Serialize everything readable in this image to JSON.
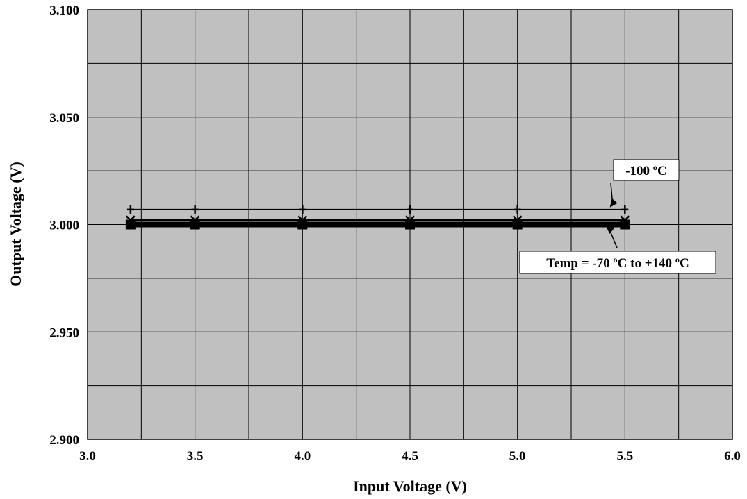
{
  "chart_data": {
    "type": "line",
    "xlabel": "Input Voltage (V)",
    "ylabel": "Output Voltage (V)",
    "xlim": [
      3.0,
      6.0
    ],
    "ylim": [
      2.9,
      3.1
    ],
    "x_ticks": [
      "3.0",
      "3.5",
      "4.0",
      "4.5",
      "5.0",
      "5.5",
      "6.0"
    ],
    "y_ticks": [
      "2.900",
      "2.950",
      "3.000",
      "3.050",
      "3.100"
    ],
    "grid": true,
    "background_color": "#c0c0c0",
    "series": [
      {
        "marker": "plus",
        "x": [
          3.2,
          3.5,
          4.0,
          4.5,
          5.0,
          5.5
        ],
        "y": [
          3.007,
          3.007,
          3.007,
          3.007,
          3.007,
          3.007
        ]
      },
      {
        "marker": "x",
        "x": [
          3.2,
          3.5,
          4.0,
          4.5,
          5.0,
          5.5
        ],
        "y": [
          3.002,
          3.002,
          3.002,
          3.002,
          3.002,
          3.002
        ]
      },
      {
        "marker": "square",
        "x": [
          3.2,
          3.5,
          4.0,
          4.5,
          5.0,
          5.5
        ],
        "y": [
          3.0,
          3.0,
          3.0,
          3.0,
          3.0,
          3.0
        ]
      }
    ],
    "annotations": [
      {
        "text": "-100 ºC",
        "target": {
          "x": 5.43,
          "y": 3.008
        }
      },
      {
        "text": "Temp = -70 ºC to +140 ºC",
        "target": {
          "x": 5.41,
          "y": 2.9995
        }
      }
    ]
  }
}
